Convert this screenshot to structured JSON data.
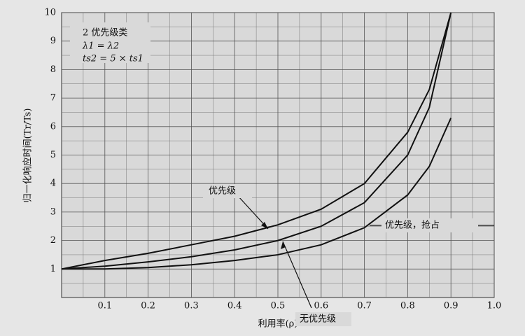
{
  "chart_data": {
    "type": "line",
    "xlabel": "利用率(ρ)",
    "ylabel": "归一化响应时间(Tr/Ts)",
    "annotations": [
      "2 优先级类",
      "λ1 = λ2",
      "ts2 = 5 × ts1"
    ],
    "x": [
      0,
      0.1,
      0.2,
      0.3,
      0.4,
      0.5,
      0.6,
      0.7,
      0.8,
      0.85,
      0.9
    ],
    "series": [
      {
        "name": "优先级",
        "color": "#111111",
        "values": [
          1,
          1.3,
          1.55,
          1.85,
          2.15,
          2.55,
          3.1,
          4.0,
          5.8,
          7.3,
          10
        ]
      },
      {
        "name": "无优先级",
        "color": "#111111",
        "values": [
          1,
          1.1,
          1.25,
          1.43,
          1.67,
          2.0,
          2.5,
          3.33,
          5.0,
          6.67,
          10
        ]
      },
      {
        "name": "优先级，抢占",
        "color": "#111111",
        "values": [
          1,
          1.0,
          1.05,
          1.15,
          1.3,
          1.5,
          1.85,
          2.45,
          3.6,
          4.6,
          6.3
        ]
      }
    ],
    "xlim": [
      0,
      1
    ],
    "xticks": [
      0.1,
      0.2,
      0.3,
      0.4,
      0.5,
      0.6,
      0.7,
      0.8,
      0.9,
      {
        "value": 1,
        "label": "1.0"
      }
    ],
    "ylim": [
      0,
      10
    ],
    "yticks": [
      1,
      2,
      3,
      4,
      5,
      6,
      7,
      8,
      9,
      10
    ],
    "grid": true,
    "minor_grid": true
  }
}
